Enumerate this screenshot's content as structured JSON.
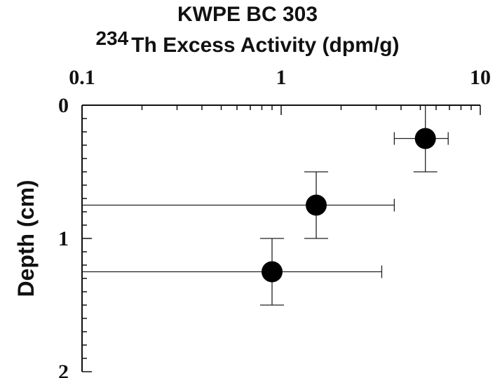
{
  "chart_data": {
    "type": "scatter",
    "title": "KWPE BC 303",
    "subtitle_superscript": "234",
    "subtitle": "Th Excess Activity (dpm/g)",
    "xlabel_position": "top",
    "ylabel": "Depth (cm)",
    "xscale": "log",
    "xlim": [
      0.1,
      10
    ],
    "ylim": [
      0,
      2
    ],
    "y_inverted": true,
    "x_tick_labels": [
      "0.1",
      "1",
      "10"
    ],
    "x_tick_values": [
      0.1,
      1,
      10
    ],
    "y_tick_labels": [
      "0",
      "1",
      "2"
    ],
    "y_tick_values": [
      0,
      1,
      2
    ],
    "grid": false,
    "points": [
      {
        "x": 5.3,
        "y": 0.25,
        "xerr_low": 3.7,
        "xerr_high": 6.9,
        "yerr_low": 0.0,
        "yerr_high": 0.5
      },
      {
        "x": 1.5,
        "y": 0.75,
        "xerr_low": 0.1,
        "xerr_high": 3.7,
        "yerr_low": 0.5,
        "yerr_high": 1.0
      },
      {
        "x": 0.9,
        "y": 1.25,
        "xerr_low": 0.1,
        "xerr_high": 3.2,
        "yerr_low": 1.0,
        "yerr_high": 1.5
      }
    ]
  }
}
